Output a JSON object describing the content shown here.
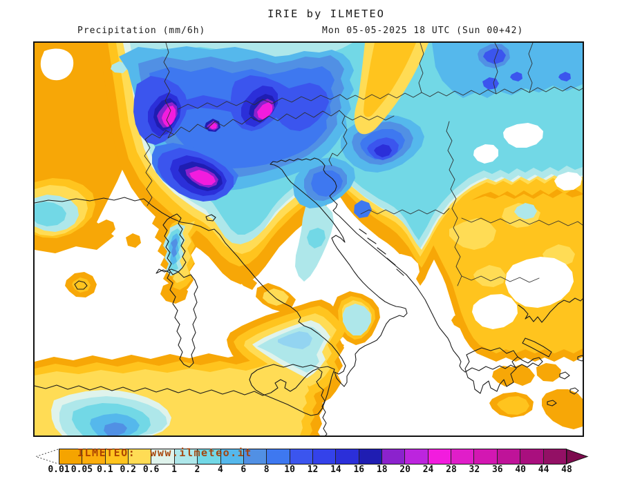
{
  "header": {
    "title": "IRIE by ILMETEO",
    "left_subtitle": "Precipitation (mm/6h)",
    "right_subtitle": "Mon 05-05-2025 18 UTC (Sun 00+42)"
  },
  "colorbar": {
    "watermark": "ILMETEO:  www.ilmeteo.it",
    "tick_labels": [
      "0.01",
      "0.05",
      "0.1",
      "0.2",
      "0.6",
      "1",
      "2",
      "4",
      "6",
      "8",
      "10",
      "12",
      "14",
      "16",
      "18",
      "20",
      "24",
      "28",
      "32",
      "36",
      "40",
      "44",
      "48"
    ],
    "segment_colors": [
      "#F5A400",
      "#FCAE0D",
      "#FFC41E",
      "#FFDC55",
      "#DFF3EC",
      "#AEE7EA",
      "#72D8E6",
      "#55B8EC",
      "#5190E4",
      "#3E78F0",
      "#3B55EE",
      "#3442EA",
      "#2B2FD9",
      "#1F1DB2",
      "#8B22CD",
      "#BC25DE",
      "#F21CDE",
      "#E01EC9",
      "#D317B2",
      "#BF1399",
      "#A90F7E",
      "#931065"
    ],
    "right_arrow_color": "#7D0C4E",
    "left_arrow_style": "dotted-white-triangle"
  },
  "palette": {
    "orange": "#F7A707",
    "gold": "#FFC41E",
    "yellow": "#FFDC55",
    "mint": "#DFF3EC",
    "paleCyan": "#AEE7EA",
    "lightBlue": "#93D4F1",
    "cyan": "#72D8E6",
    "sky": "#55B8EC",
    "cornflower": "#5190E4",
    "brightBlue": "#3E78F0",
    "royal": "#3B55EE",
    "deepRoyal": "#3442EA",
    "deepBlue": "#2B2FD9",
    "navy": "#1F1DB2",
    "purple": "#8B22CD",
    "magentaPurple": "#BC25DE",
    "magenta": "#F21CDE",
    "white": "#FFFFFF",
    "coast": "#1b1b1b",
    "borderLine": "#2e2e2e"
  }
}
